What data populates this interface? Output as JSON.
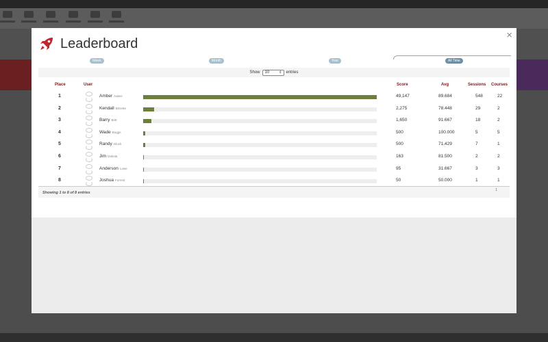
{
  "modal": {
    "title": "Leaderboard",
    "close_label": "×",
    "tabs": [
      {
        "label": "Week",
        "active": false
      },
      {
        "label": "Month",
        "active": false
      },
      {
        "label": "Year",
        "active": false
      },
      {
        "label": "All Time",
        "active": true
      }
    ],
    "length": {
      "prefix": "Show",
      "value": "10",
      "suffix": "entries"
    },
    "columns": {
      "place": "Place",
      "user": "User",
      "score": "Score",
      "avg": "Avg",
      "sessions": "Sessions",
      "courses": "Courses"
    },
    "rows": [
      {
        "place": "1",
        "first": "Amber",
        "last": "Aakes",
        "score": "49,147",
        "fill": 1.0,
        "avg": "89.684",
        "sessions": "548",
        "courses": "22"
      },
      {
        "place": "2",
        "first": "Kendall",
        "last": "Brizette",
        "score": "2,275",
        "fill": 0.046,
        "avg": "78.448",
        "sessions": "29",
        "courses": "2"
      },
      {
        "place": "3",
        "first": "Barry",
        "last": "Britt",
        "score": "1,650",
        "fill": 0.034,
        "avg": "91.667",
        "sessions": "18",
        "courses": "2"
      },
      {
        "place": "4",
        "first": "Wade",
        "last": "Boggs",
        "score": "500",
        "fill": 0.01,
        "avg": "100.000",
        "sessions": "5",
        "courses": "5"
      },
      {
        "place": "5",
        "first": "Randy",
        "last": "Gluck",
        "score": "500",
        "fill": 0.01,
        "avg": "71.429",
        "sessions": "7",
        "courses": "1"
      },
      {
        "place": "6",
        "first": "Jim",
        "last": "Dakota",
        "score": "163",
        "fill": 0.0033,
        "avg": "81.500",
        "sessions": "2",
        "courses": "2"
      },
      {
        "place": "7",
        "first": "Anderson",
        "last": "Lowe",
        "score": "95",
        "fill": 0.0019,
        "avg": "31.667",
        "sessions": "3",
        "courses": "3"
      },
      {
        "place": "8",
        "first": "Joshua",
        "last": "Forrest",
        "score": "50",
        "fill": 0.001,
        "avg": "50.000",
        "sessions": "1",
        "courses": "1"
      }
    ],
    "info": "Showing 1 to 8 of 8 entries",
    "page": "1"
  },
  "colors": {
    "bar": "#6e7e3c",
    "header_text": "#7a1a1a",
    "rocket": "#c0272d",
    "tab_active": "#6d8fa6"
  },
  "icons": {
    "logo": "rocket-icon",
    "close": "close-icon"
  }
}
